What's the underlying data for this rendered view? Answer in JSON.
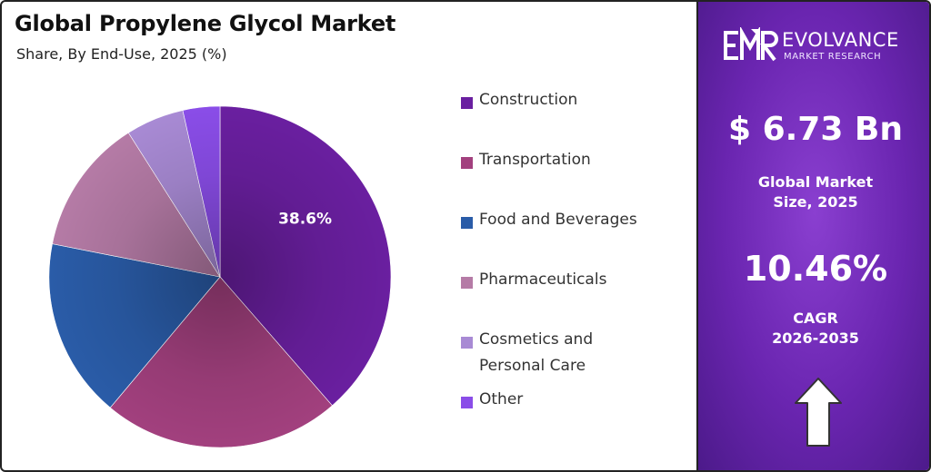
{
  "header": {
    "title": "Global Propylene Glycol Market",
    "subtitle": "Share, By End-Use, 2025 (%)"
  },
  "chart_data": {
    "type": "pie",
    "title": "Global Propylene Glycol Market",
    "subtitle": "Share, By End-Use, 2025 (%)",
    "categories": [
      "Construction",
      "Transportation",
      "Food and Beverages",
      "Pharmaceuticals",
      "Cosmetics and Personal Care",
      "Other"
    ],
    "values": [
      38.6,
      22.5,
      17.0,
      12.9,
      5.5,
      3.5
    ],
    "data_labels": [
      "38.6%",
      "",
      "",
      "",
      "",
      ""
    ],
    "colors": [
      "#6a1fa0",
      "#a2407e",
      "#2a5ca8",
      "#b57ba6",
      "#a88ad4",
      "#8a4de8"
    ],
    "legend_position": "right",
    "legend": [
      {
        "label": "Construction",
        "color": "#6a1fa0"
      },
      {
        "label": "Transportation",
        "color": "#a2407e"
      },
      {
        "label": "Food and Beverages",
        "color": "#2a5ca8"
      },
      {
        "label": "Pharmaceuticals",
        "color": "#b57ba6"
      },
      {
        "label": "Cosmetics and\nPersonal Care",
        "color": "#a88ad4"
      },
      {
        "label": "Other",
        "color": "#8a4de8"
      }
    ]
  },
  "sidebar": {
    "logo": {
      "mark_text": "EMR",
      "name": "EVOLVANCE",
      "sub": "MARKET RESEARCH",
      "icon": "emr-logo-icon"
    },
    "market_size": {
      "value": "$ 6.73 Bn",
      "label": "Global Market\nSize, 2025"
    },
    "cagr": {
      "value": "10.46%",
      "label": "CAGR\n2026-2035"
    },
    "arrow_icon": "up-arrow-icon",
    "accent_color": "#6a25b0"
  }
}
